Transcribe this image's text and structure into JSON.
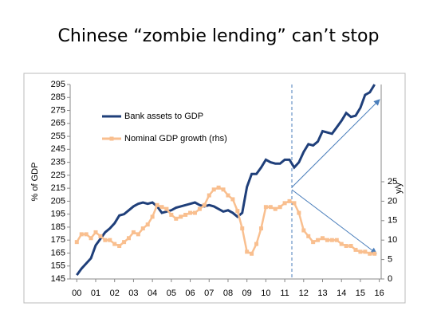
{
  "chart_data": {
    "type": "line",
    "title": "Chinese “zombie lending” can’t stop",
    "y_label": "% of GDP",
    "y2_label": "y/y",
    "x": [
      0,
      0.25,
      0.5,
      0.75,
      1,
      1.25,
      1.5,
      1.75,
      2,
      2.25,
      2.5,
      2.75,
      3,
      3.25,
      3.5,
      3.75,
      4,
      4.25,
      4.5,
      4.75,
      5,
      5.25,
      5.5,
      5.75,
      6,
      6.25,
      6.5,
      6.75,
      7,
      7.25,
      7.5,
      7.75,
      8,
      8.25,
      8.5,
      8.75,
      9,
      9.25,
      9.5,
      9.75,
      10,
      10.25,
      10.5,
      10.75,
      11,
      11.25,
      11.5,
      11.75,
      12,
      12.25,
      12.5,
      12.75,
      13,
      13.25,
      13.5,
      13.75,
      14,
      14.25,
      14.5,
      14.75,
      15,
      15.25,
      15.5,
      15.75
    ],
    "xlim": [
      -0.35,
      16.1
    ],
    "xticks": [
      {
        "value": 0,
        "label": "00"
      },
      {
        "value": 1,
        "label": "01"
      },
      {
        "value": 2,
        "label": "02"
      },
      {
        "value": 3,
        "label": "03"
      },
      {
        "value": 4,
        "label": "04"
      },
      {
        "value": 5,
        "label": "05"
      },
      {
        "value": 6,
        "label": "06"
      },
      {
        "value": 7,
        "label": "07"
      },
      {
        "value": 8,
        "label": "08"
      },
      {
        "value": 9,
        "label": "09"
      },
      10,
      11,
      12,
      13,
      14,
      15,
      16
    ],
    "ylim": [
      145,
      295
    ],
    "yticks": [
      145,
      155,
      165,
      175,
      185,
      195,
      205,
      215,
      225,
      235,
      245,
      255,
      265,
      275,
      285,
      295
    ],
    "y2lim": [
      0,
      50
    ],
    "y2ticks": [
      0,
      5,
      10,
      15,
      20,
      25
    ],
    "legend": "top-left",
    "series": [
      {
        "name": "Bank assets to GDP",
        "color": "#1f3f7a",
        "values": [
          148,
          153,
          157,
          161,
          171,
          176,
          181,
          184,
          188,
          194,
          195,
          198,
          201,
          203,
          204,
          203,
          204,
          201,
          196,
          197,
          198,
          200,
          201,
          202,
          203,
          204,
          202,
          201,
          202,
          201,
          199,
          197,
          198,
          196,
          193,
          196,
          216,
          226,
          226,
          231,
          237,
          235,
          234,
          234,
          237,
          237,
          231,
          235,
          243,
          249,
          248,
          251,
          259,
          258,
          257,
          262,
          267,
          273,
          270,
          271,
          277,
          287,
          289,
          295
        ]
      },
      {
        "name": "Nominal GDP growth (rhs)",
        "color": "#f9bf8f",
        "axis": "y2",
        "values": [
          9.5,
          11.5,
          11.5,
          10.5,
          12,
          11,
          10,
          10,
          9,
          8.5,
          9.5,
          10.5,
          12,
          11.5,
          13,
          14,
          16,
          19,
          18.5,
          18,
          16.5,
          15.5,
          16,
          16.5,
          17,
          17,
          18,
          19,
          21.5,
          23,
          23.5,
          23,
          21.5,
          20.5,
          17.5,
          13,
          7,
          6.5,
          9,
          13,
          18.5,
          18.5,
          18,
          18.5,
          19.5,
          20,
          19.5,
          17,
          12.5,
          11,
          9.5,
          10,
          10.5,
          10,
          10,
          10,
          9,
          8.5,
          8.5,
          7.5,
          7,
          7,
          6.5,
          6.5
        ]
      }
    ]
  }
}
